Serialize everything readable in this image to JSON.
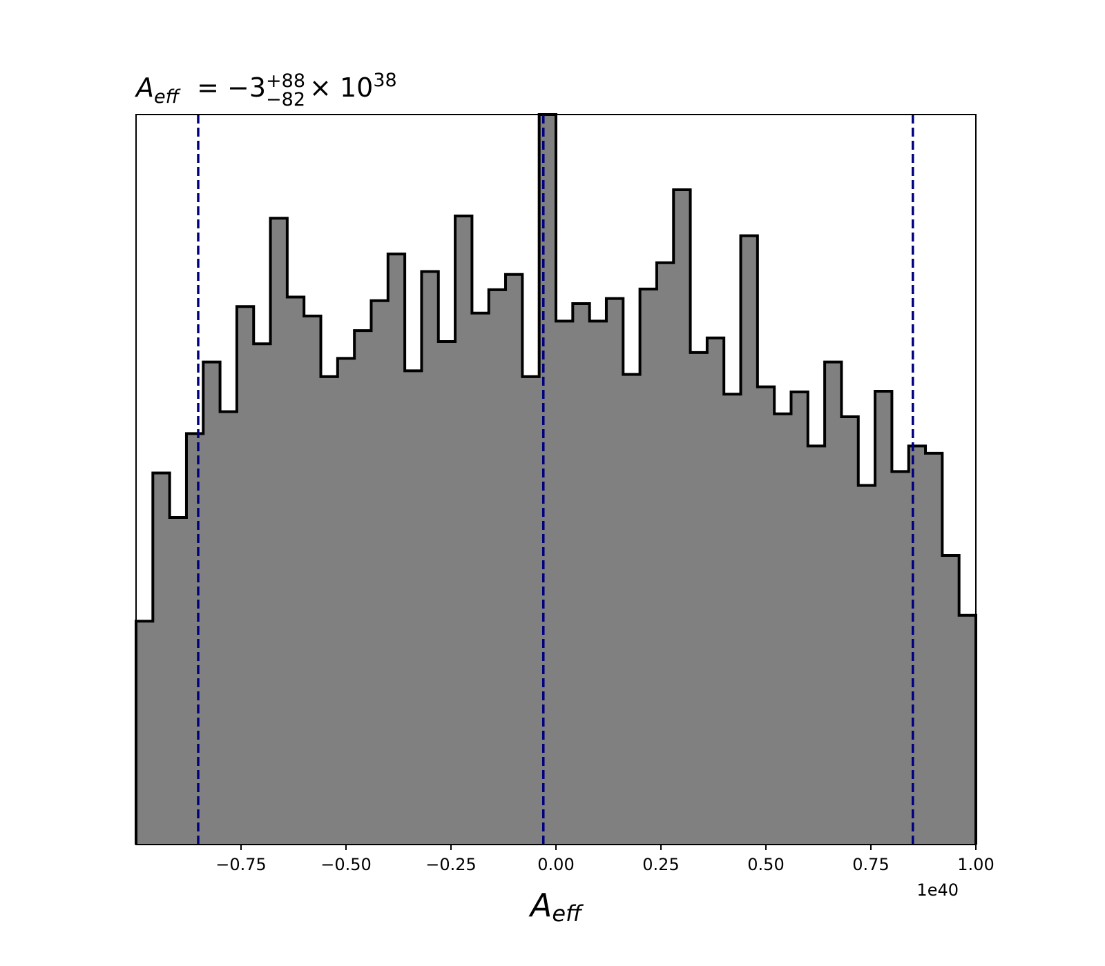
{
  "chart_data": {
    "type": "histogram",
    "title": {
      "symbol": "A",
      "symbol_sub": "eff",
      "equals": "= −3",
      "upper": "+88",
      "lower": "−82",
      "times": "× 10",
      "exponent": "38"
    },
    "xlabel": {
      "symbol": "A",
      "sub": "eff"
    },
    "ylabel": "",
    "x_offset_label": "1e40",
    "xlim": [
      -1.0,
      1.0
    ],
    "ylim": [
      0,
      1.0
    ],
    "x_ticks": [
      -0.75,
      -0.5,
      -0.25,
      0.0,
      0.25,
      0.5,
      0.75,
      1.0
    ],
    "x_tick_labels": [
      "−0.75",
      "−0.50",
      "−0.25",
      "0.00",
      "0.25",
      "0.50",
      "0.75",
      "1.00"
    ],
    "y_ticks_shown": false,
    "bin_edges": [
      -1.0,
      -0.96,
      -0.92,
      -0.88,
      -0.84,
      -0.8,
      -0.76,
      -0.72,
      -0.68,
      -0.64,
      -0.6,
      -0.56,
      -0.52,
      -0.48,
      -0.44,
      -0.4,
      -0.36,
      -0.32,
      -0.28,
      -0.24,
      -0.2,
      -0.16,
      -0.12,
      -0.08,
      -0.04,
      0.0,
      0.04,
      0.08,
      0.12,
      0.16,
      0.2,
      0.24,
      0.28,
      0.32,
      0.36,
      0.4,
      0.44,
      0.48,
      0.52,
      0.56,
      0.6,
      0.64,
      0.68,
      0.72,
      0.76,
      0.8,
      0.84,
      0.88,
      0.92,
      0.96,
      1.0
    ],
    "counts": [
      0.306,
      0.509,
      0.448,
      0.563,
      0.661,
      0.593,
      0.737,
      0.686,
      0.858,
      0.75,
      0.724,
      0.641,
      0.666,
      0.704,
      0.745,
      0.809,
      0.649,
      0.785,
      0.689,
      0.861,
      0.728,
      0.76,
      0.781,
      0.641,
      1.0,
      0.717,
      0.741,
      0.717,
      0.748,
      0.644,
      0.761,
      0.797,
      0.897,
      0.674,
      0.694,
      0.617,
      0.834,
      0.627,
      0.59,
      0.62,
      0.546,
      0.661,
      0.586,
      0.492,
      0.621,
      0.511,
      0.546,
      0.536,
      0.396,
      0.314
    ],
    "reference_lines": [
      {
        "x": -0.852,
        "style": "dashed",
        "color": "#00007f"
      },
      {
        "x": -0.03,
        "style": "dashed",
        "color": "#00007f"
      },
      {
        "x": 0.85,
        "style": "dashed",
        "color": "#00007f"
      }
    ],
    "fill_color": "#808080",
    "edge_color": "#000000",
    "grid": false,
    "legend": "none"
  }
}
